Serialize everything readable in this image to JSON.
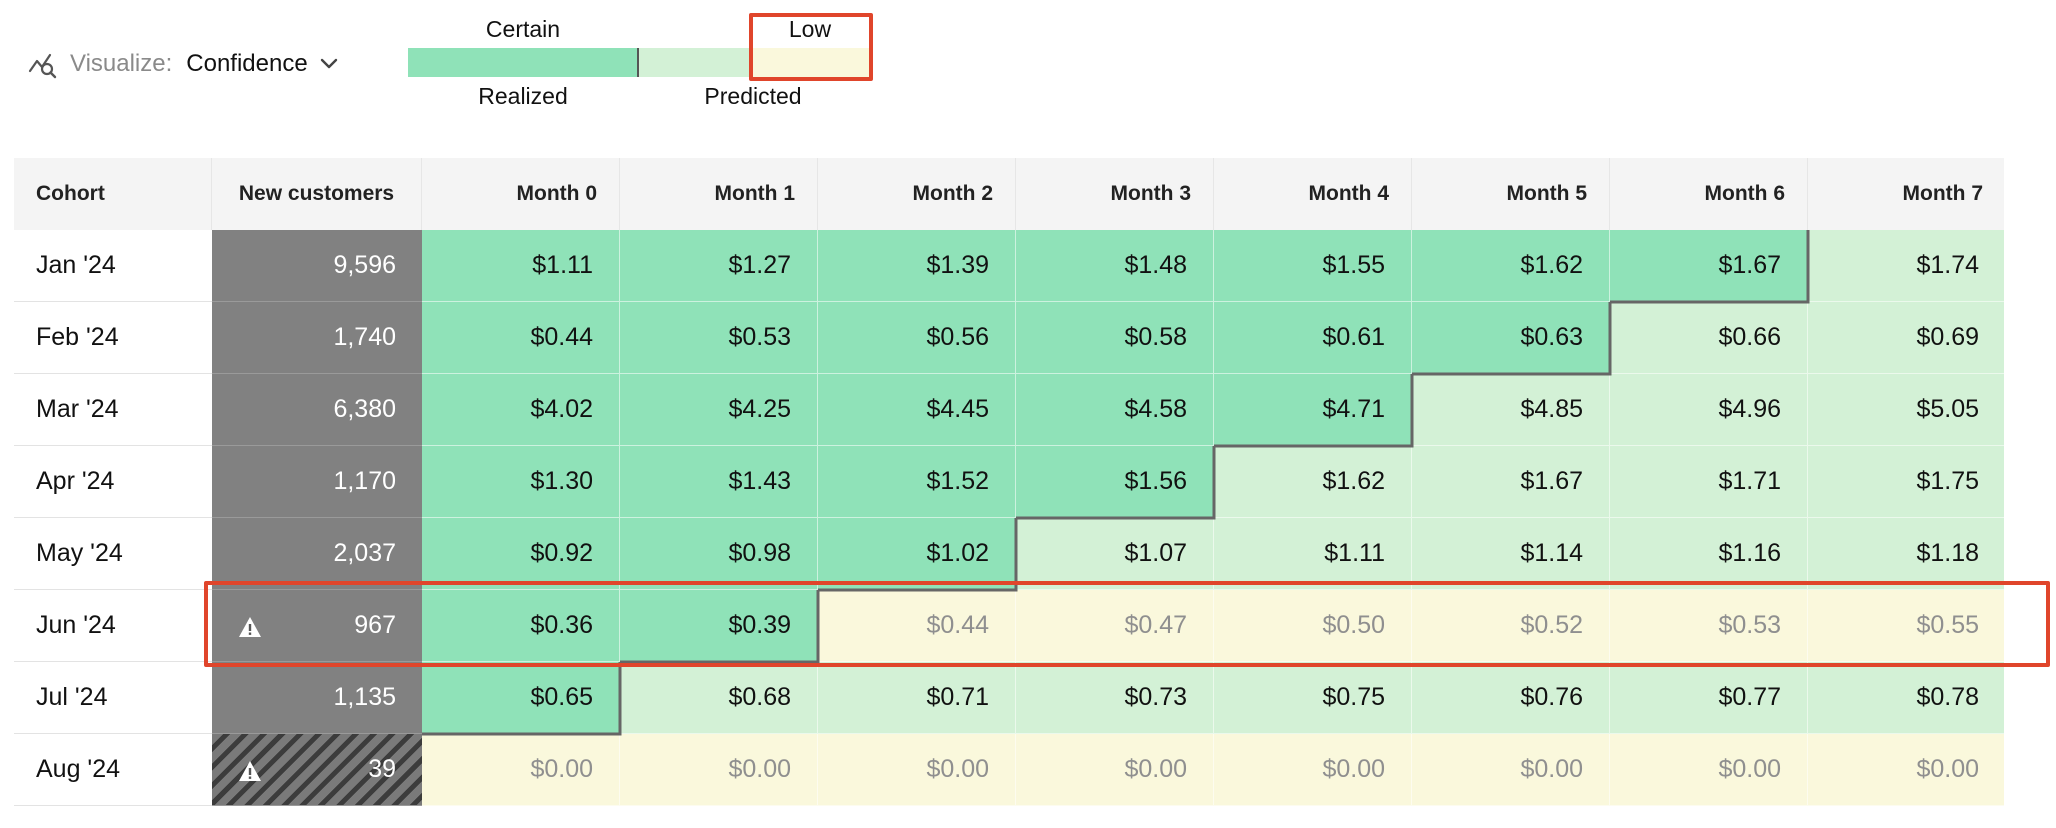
{
  "toolbar": {
    "visualize_label": "Visualize:",
    "visualize_value": "Confidence",
    "icon": "chart-search-icon"
  },
  "legend": {
    "certain_label": "Certain",
    "low_label": "Low",
    "realized_label": "Realized",
    "predicted_label": "Predicted",
    "colors": {
      "realized": "#8fe2b8",
      "predicted": "#d3f1d6",
      "low": "#faf8dc"
    }
  },
  "table": {
    "headers": [
      "Cohort",
      "New customers",
      "Month 0",
      "Month 1",
      "Month 2",
      "Month 3",
      "Month 4",
      "Month 5",
      "Month 6",
      "Month 7"
    ],
    "rows": [
      {
        "cohort": "Jan '24",
        "new_customers": "9,596",
        "warning": false,
        "hatched": false,
        "values": [
          "$1.11",
          "$1.27",
          "$1.39",
          "$1.48",
          "$1.55",
          "$1.62",
          "$1.67",
          "$1.74"
        ],
        "states": [
          "realized",
          "realized",
          "realized",
          "realized",
          "realized",
          "realized",
          "realized",
          "predicted"
        ]
      },
      {
        "cohort": "Feb '24",
        "new_customers": "1,740",
        "warning": false,
        "hatched": false,
        "values": [
          "$0.44",
          "$0.53",
          "$0.56",
          "$0.58",
          "$0.61",
          "$0.63",
          "$0.66",
          "$0.69"
        ],
        "states": [
          "realized",
          "realized",
          "realized",
          "realized",
          "realized",
          "realized",
          "predicted",
          "predicted"
        ]
      },
      {
        "cohort": "Mar '24",
        "new_customers": "6,380",
        "warning": false,
        "hatched": false,
        "values": [
          "$4.02",
          "$4.25",
          "$4.45",
          "$4.58",
          "$4.71",
          "$4.85",
          "$4.96",
          "$5.05"
        ],
        "states": [
          "realized",
          "realized",
          "realized",
          "realized",
          "realized",
          "predicted",
          "predicted",
          "predicted"
        ]
      },
      {
        "cohort": "Apr '24",
        "new_customers": "1,170",
        "warning": false,
        "hatched": false,
        "values": [
          "$1.30",
          "$1.43",
          "$1.52",
          "$1.56",
          "$1.62",
          "$1.67",
          "$1.71",
          "$1.75"
        ],
        "states": [
          "realized",
          "realized",
          "realized",
          "realized",
          "predicted",
          "predicted",
          "predicted",
          "predicted"
        ]
      },
      {
        "cohort": "May '24",
        "new_customers": "2,037",
        "warning": false,
        "hatched": false,
        "values": [
          "$0.92",
          "$0.98",
          "$1.02",
          "$1.07",
          "$1.11",
          "$1.14",
          "$1.16",
          "$1.18"
        ],
        "states": [
          "realized",
          "realized",
          "realized",
          "predicted",
          "predicted",
          "predicted",
          "predicted",
          "predicted"
        ]
      },
      {
        "cohort": "Jun '24",
        "new_customers": "967",
        "warning": true,
        "hatched": false,
        "values": [
          "$0.36",
          "$0.39",
          "$0.44",
          "$0.47",
          "$0.50",
          "$0.52",
          "$0.53",
          "$0.55"
        ],
        "states": [
          "realized",
          "realized",
          "low",
          "low",
          "low",
          "low",
          "low",
          "low"
        ]
      },
      {
        "cohort": "Jul '24",
        "new_customers": "1,135",
        "warning": false,
        "hatched": false,
        "values": [
          "$0.65",
          "$0.68",
          "$0.71",
          "$0.73",
          "$0.75",
          "$0.76",
          "$0.77",
          "$0.78"
        ],
        "states": [
          "realized",
          "predicted",
          "predicted",
          "predicted",
          "predicted",
          "predicted",
          "predicted",
          "predicted"
        ]
      },
      {
        "cohort": "Aug '24",
        "new_customers": "39",
        "warning": true,
        "hatched": true,
        "values": [
          "$0.00",
          "$0.00",
          "$0.00",
          "$0.00",
          "$0.00",
          "$0.00",
          "$0.00",
          "$0.00"
        ],
        "states": [
          "low",
          "low",
          "low",
          "low",
          "low",
          "low",
          "low",
          "low"
        ]
      }
    ]
  }
}
